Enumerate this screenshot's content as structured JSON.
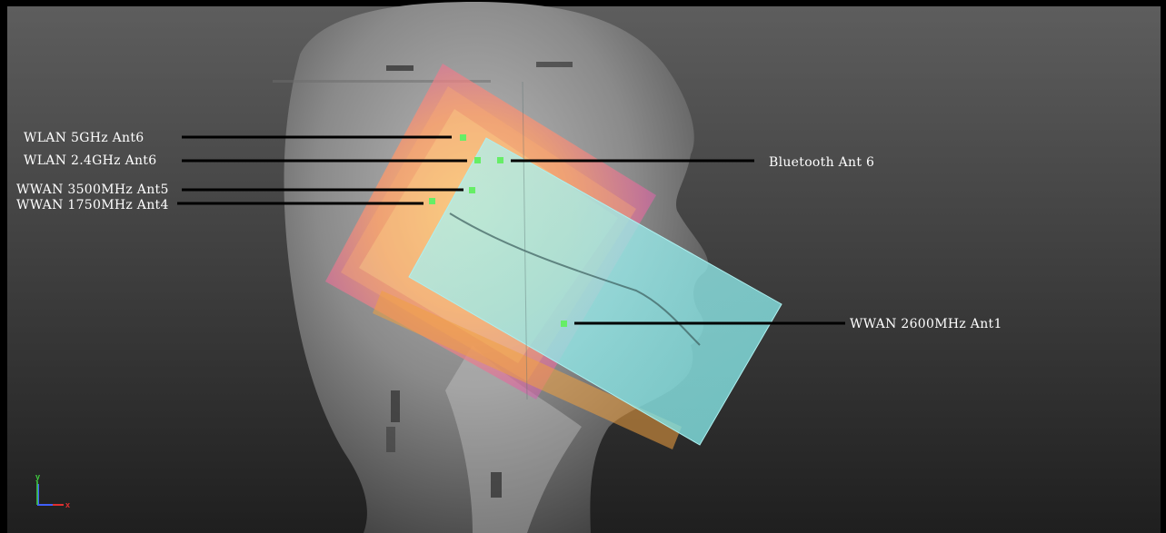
{
  "colors": {
    "background_top": "#5e5e5e",
    "background_bottom": "#1f1f1f",
    "frame_border": "#000000",
    "leader_line": "#000000",
    "feed_point": "#66ee66",
    "label_text": "#ffffff",
    "phone_cyan": "#8fe6e6",
    "phantom_grey": "#8a8a8a",
    "axis_x": "#e03030",
    "axis_y": "#40d040",
    "axis_z": "#4060ff"
  },
  "labels": {
    "wlan_5ghz": "WLAN 5GHz Ant6",
    "wlan_24ghz": "WLAN 2.4GHz Ant6",
    "wwan_3500": "WWAN 3500MHz Ant5",
    "wwan_1750": "WWAN 1750MHz Ant4",
    "bluetooth": "Bluetooth Ant 6",
    "wwan_2600": "WWAN 2600MHz Ant1"
  },
  "axis": {
    "x_label": "x",
    "y_label": "y"
  },
  "icons": {
    "phantom": "head-phantom-icon",
    "triad": "axis-triad-icon"
  }
}
